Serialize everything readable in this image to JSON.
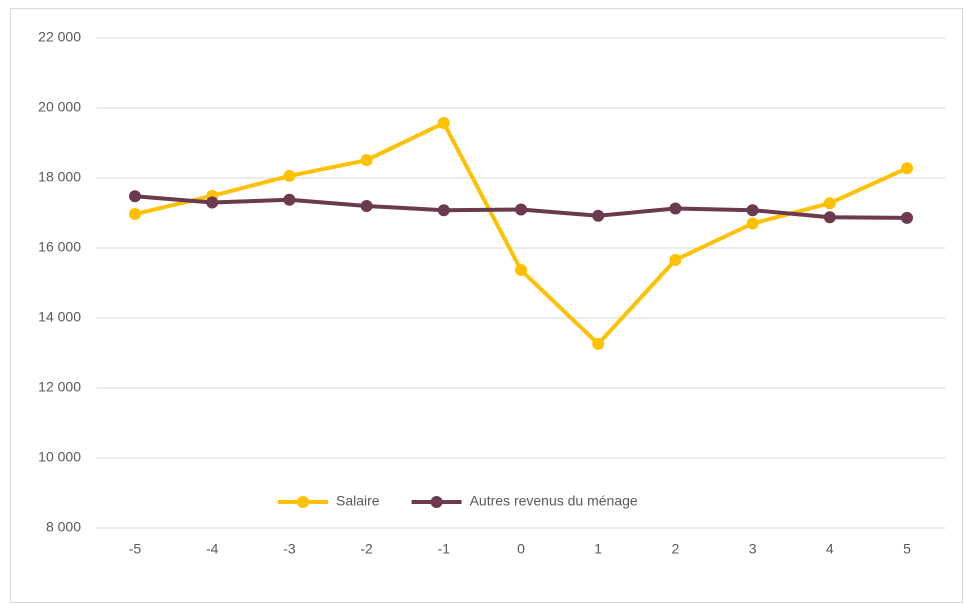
{
  "chart_data": {
    "type": "line",
    "x": [
      -5,
      -4,
      -3,
      -2,
      -1,
      0,
      1,
      2,
      3,
      4,
      5
    ],
    "xlim": [
      -5.5,
      5.5
    ],
    "series": [
      {
        "name": "Salaire",
        "color": "#ffc000",
        "values": [
          16970,
          17490,
          18060,
          18510,
          19570,
          15370,
          13260,
          15660,
          16700,
          17280,
          18280
        ]
      },
      {
        "name": "Autres revenus du ménage",
        "color": "#6b3a4e",
        "values": [
          17480,
          17300,
          17380,
          17200,
          17080,
          17100,
          16920,
          17130,
          17080,
          16880,
          16860
        ]
      }
    ],
    "ylim": [
      8000,
      22000
    ],
    "yticks": [
      {
        "value": 8000,
        "label": "8 000"
      },
      {
        "value": 10000,
        "label": "10 000"
      },
      {
        "value": 12000,
        "label": "12 000"
      },
      {
        "value": 14000,
        "label": "14 000"
      },
      {
        "value": 16000,
        "label": "16 000"
      },
      {
        "value": 18000,
        "label": "18 000"
      },
      {
        "value": 20000,
        "label": "20 000"
      },
      {
        "value": 22000,
        "label": "22 000"
      }
    ],
    "grid": true,
    "legend": "bottom"
  }
}
